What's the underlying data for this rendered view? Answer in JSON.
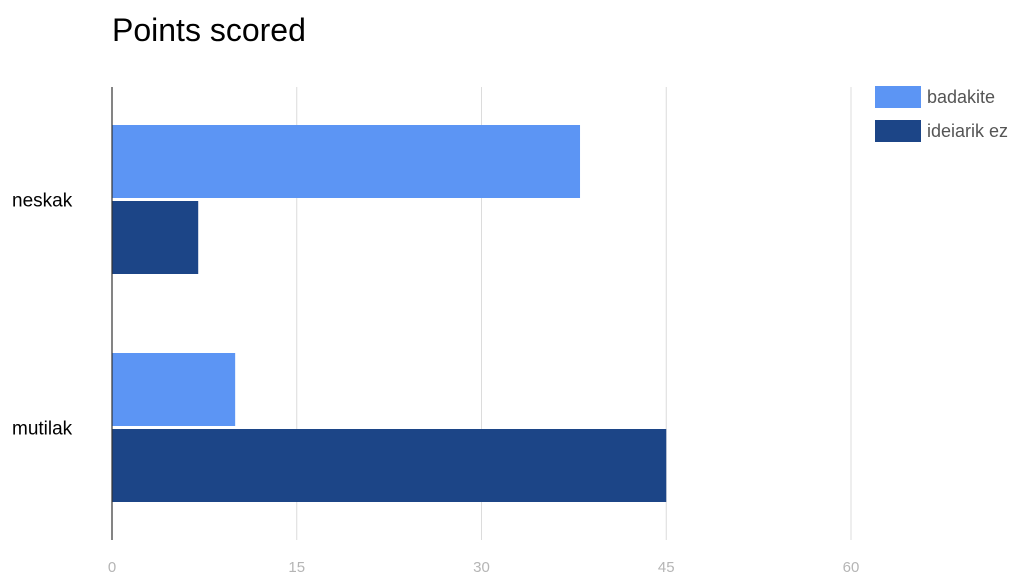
{
  "chart_data": {
    "type": "bar",
    "orientation": "horizontal",
    "title": "Points scored",
    "categories": [
      "neskak",
      "mutilak"
    ],
    "series": [
      {
        "name": "badakite",
        "color": "#5c95f4",
        "values": [
          38,
          10
        ]
      },
      {
        "name": "ideiarik ez",
        "color": "#1c4587",
        "values": [
          7,
          45
        ]
      }
    ],
    "xlim": [
      0,
      60
    ],
    "xticks": [
      "0",
      "15",
      "30",
      "45",
      "60"
    ],
    "grid": true,
    "legend_position": "top-right"
  }
}
